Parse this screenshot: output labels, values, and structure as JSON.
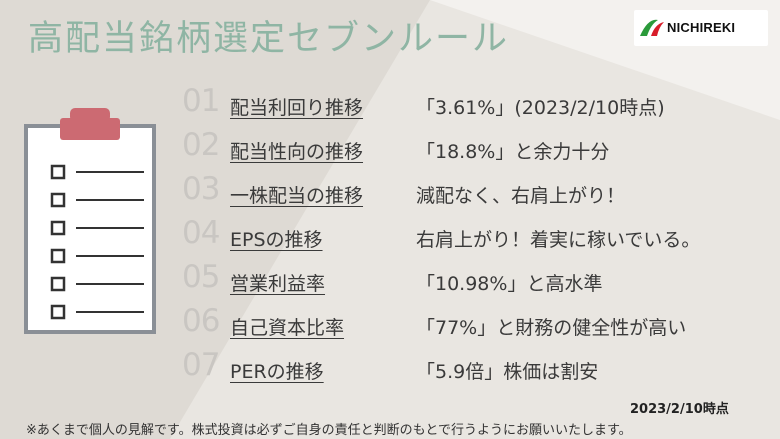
{
  "title": "高配当銘柄選定セブンルール",
  "logo": {
    "text": "NICHIREKI",
    "colors": {
      "green": "#2a9a3a",
      "red": "#d81c2a"
    }
  },
  "rules": [
    {
      "num": "01",
      "name": "配当利回り推移",
      "detail": "「3.61%」(2023/2/10時点)"
    },
    {
      "num": "02",
      "name": "配当性向の推移",
      "detail": "「18.8%」と余力十分"
    },
    {
      "num": "03",
      "name": "一株配当の推移",
      "detail": "減配なく、右肩上がり！"
    },
    {
      "num": "04",
      "name": "EPSの推移",
      "detail": "右肩上がり！着実に稼いでいる。"
    },
    {
      "num": "05",
      "name": "営業利益率",
      "detail": "「10.98%」と高水準"
    },
    {
      "num": "06",
      "name": "自己資本比率",
      "detail": "「77%」と財務の健全性が高い"
    },
    {
      "num": "07",
      "name": "PERの推移",
      "detail": "「5.9倍」株価は割安"
    }
  ],
  "timestamp": "2023/2/10時点",
  "disclaimer": "※あくまで個人の見解です。株式投資は必ずご自身の責任と判断のもとで行うようにお願いいたします。",
  "colors": {
    "title": "#8fb5a4",
    "background": "#e9e6e1",
    "clipboard_clip": "#cc6a72"
  }
}
